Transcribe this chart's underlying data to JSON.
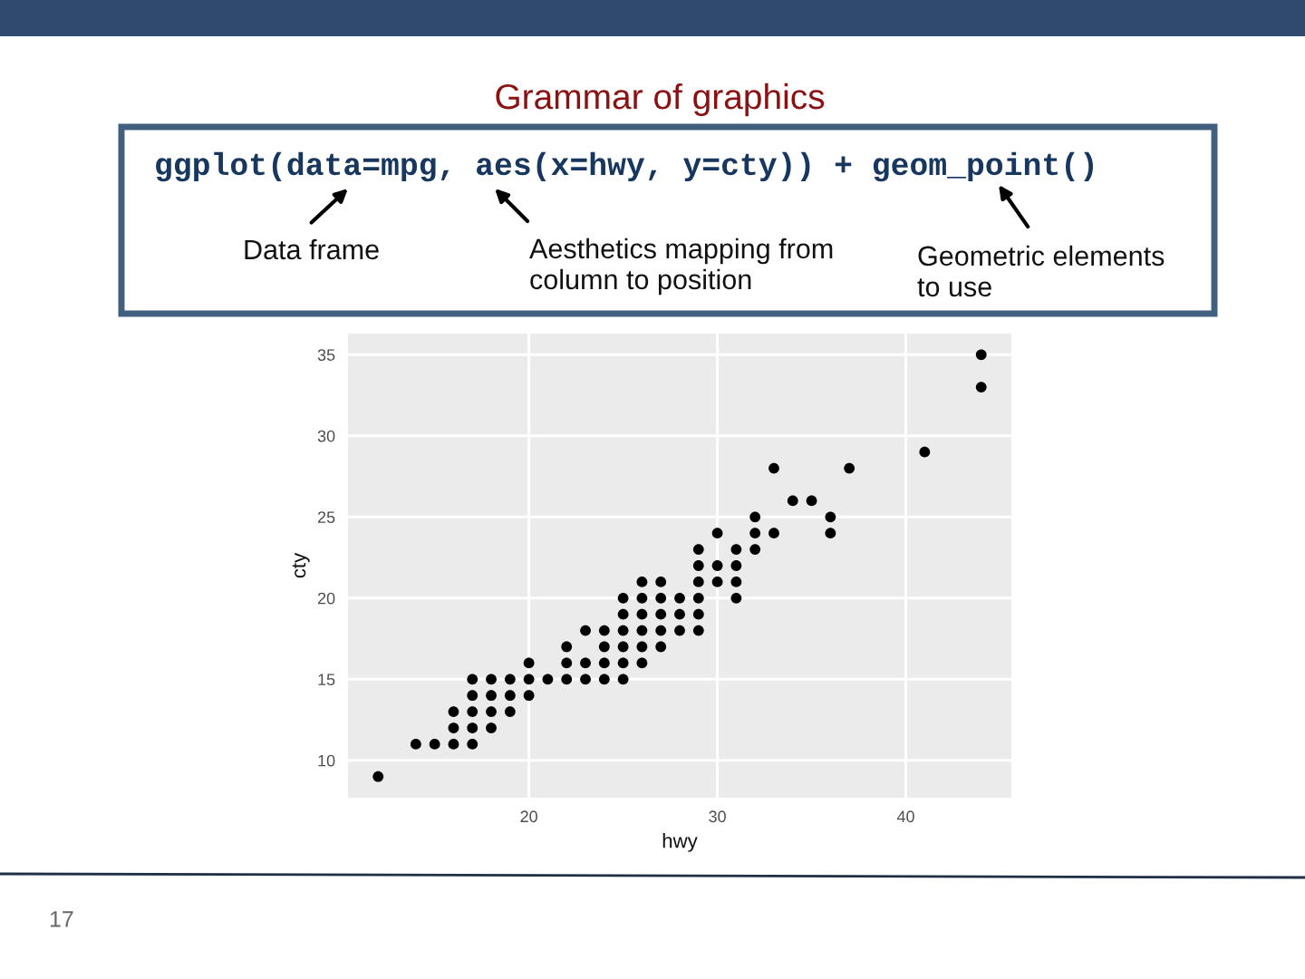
{
  "chart_data": {
    "type": "scatter",
    "title": "Grammar of graphics",
    "xlabel": "hwy",
    "ylabel": "cty",
    "annotations": [
      "ggplot(data=mpg, aes(x=hwy, y=cty)) + geom_point()",
      "Data frame",
      "Aesthetics mapping from\ncolumn to position",
      "Geometric elements\nto use",
      "17"
    ],
    "series": [
      {
        "color": "#000000",
        "x": [
          12,
          14,
          15,
          16,
          16,
          16,
          17,
          17,
          17,
          17,
          17,
          18,
          18,
          18,
          18,
          19,
          19,
          19,
          20,
          20,
          20,
          21,
          22,
          22,
          22,
          23,
          23,
          23,
          24,
          24,
          24,
          24,
          25,
          25,
          25,
          25,
          25,
          25,
          26,
          26,
          26,
          26,
          26,
          26,
          27,
          27,
          27,
          27,
          27,
          28,
          28,
          28,
          29,
          29,
          29,
          29,
          29,
          29,
          30,
          30,
          30,
          31,
          31,
          31,
          31,
          32,
          32,
          32,
          33,
          33,
          34,
          35,
          36,
          36,
          37,
          41,
          44,
          44
        ],
        "values": [
          9,
          11,
          11,
          11,
          12,
          13,
          11,
          12,
          13,
          14,
          15,
          12,
          13,
          14,
          15,
          13,
          14,
          15,
          14,
          15,
          16,
          15,
          15,
          16,
          17,
          15,
          16,
          18,
          15,
          16,
          17,
          18,
          15,
          16,
          17,
          18,
          19,
          20,
          16,
          17,
          18,
          19,
          20,
          21,
          17,
          18,
          19,
          20,
          21,
          18,
          19,
          20,
          18,
          19,
          20,
          21,
          22,
          23,
          21,
          22,
          24,
          20,
          21,
          22,
          23,
          23,
          24,
          25,
          24,
          28,
          26,
          26,
          24,
          25,
          28,
          29,
          33,
          35
        ]
      }
    ],
    "xlim": [
      10.4,
      45.6
    ],
    "ylim": [
      7.7,
      36.3
    ],
    "xticks": [
      20,
      30,
      40
    ],
    "yticks": [
      10,
      15,
      20,
      25,
      30,
      35
    ],
    "grid": true,
    "marker": "circle"
  }
}
